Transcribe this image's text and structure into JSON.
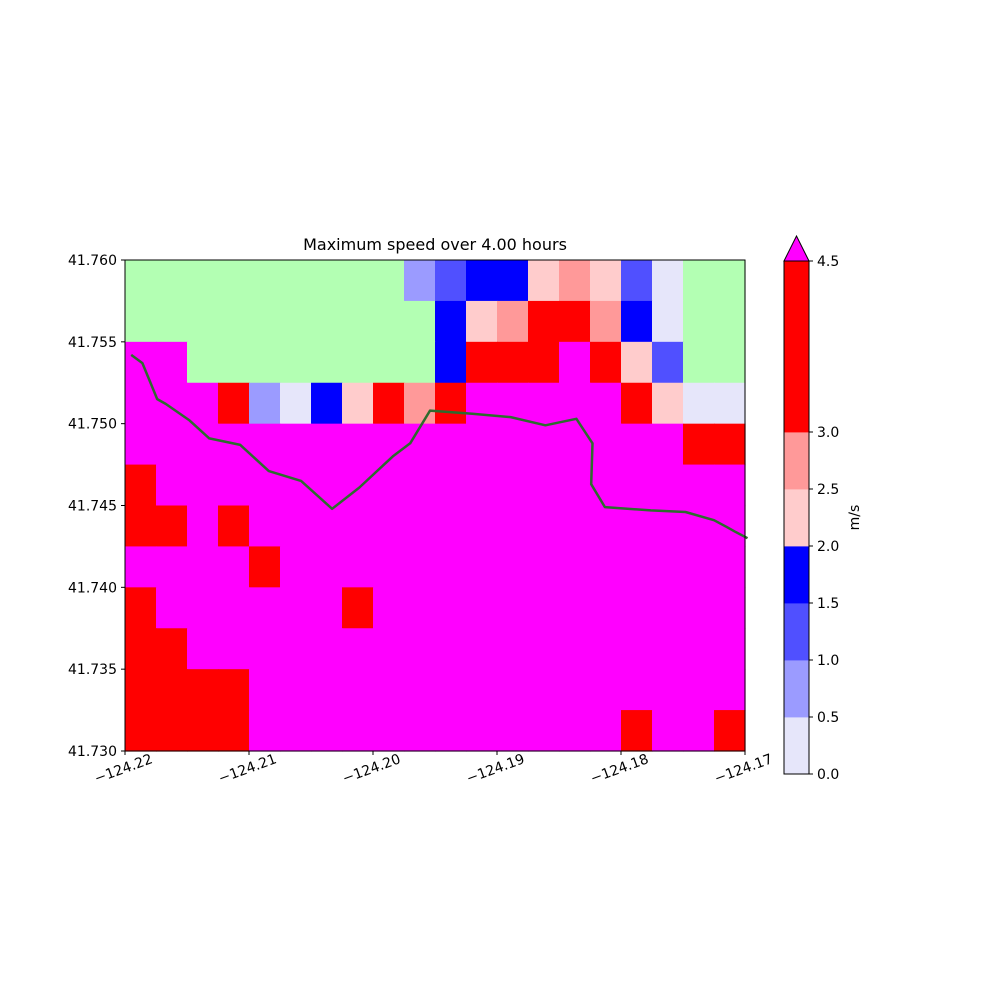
{
  "chart_data": {
    "type": "heatmap",
    "title": "Maximum speed over 4.00 hours",
    "xlabel": "",
    "ylabel": "",
    "xlim": [
      -124.22,
      -124.17
    ],
    "ylim": [
      41.73,
      41.76
    ],
    "x_ticks": [
      "−124.22",
      "−124.21",
      "−124.20",
      "−124.19",
      "−124.18",
      "−124.17"
    ],
    "y_ticks": [
      "41.760",
      "41.755",
      "41.750",
      "41.745",
      "41.740",
      "41.735",
      "41.730"
    ],
    "grid": false,
    "colorbar": {
      "label": "m/s",
      "ticks": [
        "0.0",
        "0.5",
        "1.0",
        "1.5",
        "2.0",
        "2.5",
        "3.0",
        "4.5"
      ],
      "boundaries": [
        0,
        0.5,
        1.0,
        1.5,
        2.0,
        2.5,
        3.0,
        4.5
      ],
      "colors": [
        "#e6e6fa",
        "#9b9bff",
        "#5050ff",
        "#0000ff",
        "#ffcccc",
        "#ff9999",
        "#ff0000"
      ],
      "extend_max_color": "#ff00ff"
    },
    "land_color": "#b3ffb3",
    "coastline_color": "#2e6b2e",
    "grid_shape": {
      "rows": 12,
      "cols": 20
    },
    "cells_legend": {
      "L": "land",
      "a": "0.0-0.5",
      "b": "0.5-1.0",
      "c": "1.0-1.5",
      "d": "1.5-2.0",
      "e": "2.0-2.5",
      "f": "2.5-3.0",
      "g": "3.0-4.5",
      "h": ">4.5"
    },
    "cells": [
      "LLLLLLLLLbcddefecaLL",
      "LLLLLLLLLLdefggfdaLL",
      "hhLLLLLLLLdggghgecLL",
      "hhhgbadegfghhhhhgeaa",
      "hhhhhhhhhhhhhhhhhhgg",
      "ghhhhhhhhhhhhhhhhhhh",
      "gghghhhhhhhhhhhhhhhh",
      "hhhhghhhhhhhhhhhhhhh",
      "ghhhhhhghhhhhhhhhhhh",
      "gghhhhhhhhhhhhhhhhhh",
      "gggghhhhhhhhhhhhhhhh",
      "gggghhhhhhhhhhhhghhg"
    ],
    "coastline": [
      [
        -124.2195,
        41.7542
      ],
      [
        -124.2186,
        41.7537
      ],
      [
        -124.2174,
        41.7515
      ],
      [
        -124.2167,
        41.7512
      ],
      [
        -124.2148,
        41.7502
      ],
      [
        -124.2132,
        41.7491
      ],
      [
        -124.2107,
        41.7487
      ],
      [
        -124.2084,
        41.7471
      ],
      [
        -124.2058,
        41.7465
      ],
      [
        -124.2033,
        41.7448
      ],
      [
        -124.2011,
        41.7461
      ],
      [
        -124.1984,
        41.748
      ],
      [
        -124.197,
        41.7488
      ],
      [
        -124.1954,
        41.7508
      ],
      [
        -124.192,
        41.7506
      ],
      [
        -124.1889,
        41.7504
      ],
      [
        -124.1861,
        41.7499
      ],
      [
        -124.1836,
        41.7503
      ],
      [
        -124.1823,
        41.7488
      ],
      [
        -124.1824,
        41.7463
      ],
      [
        -124.1813,
        41.7449
      ],
      [
        -124.1776,
        41.7447
      ],
      [
        -124.1748,
        41.7446
      ],
      [
        -124.1725,
        41.7441
      ],
      [
        -124.1715,
        41.7437
      ],
      [
        -124.1708,
        41.7434
      ],
      [
        -124.1698,
        41.743
      ]
    ]
  }
}
